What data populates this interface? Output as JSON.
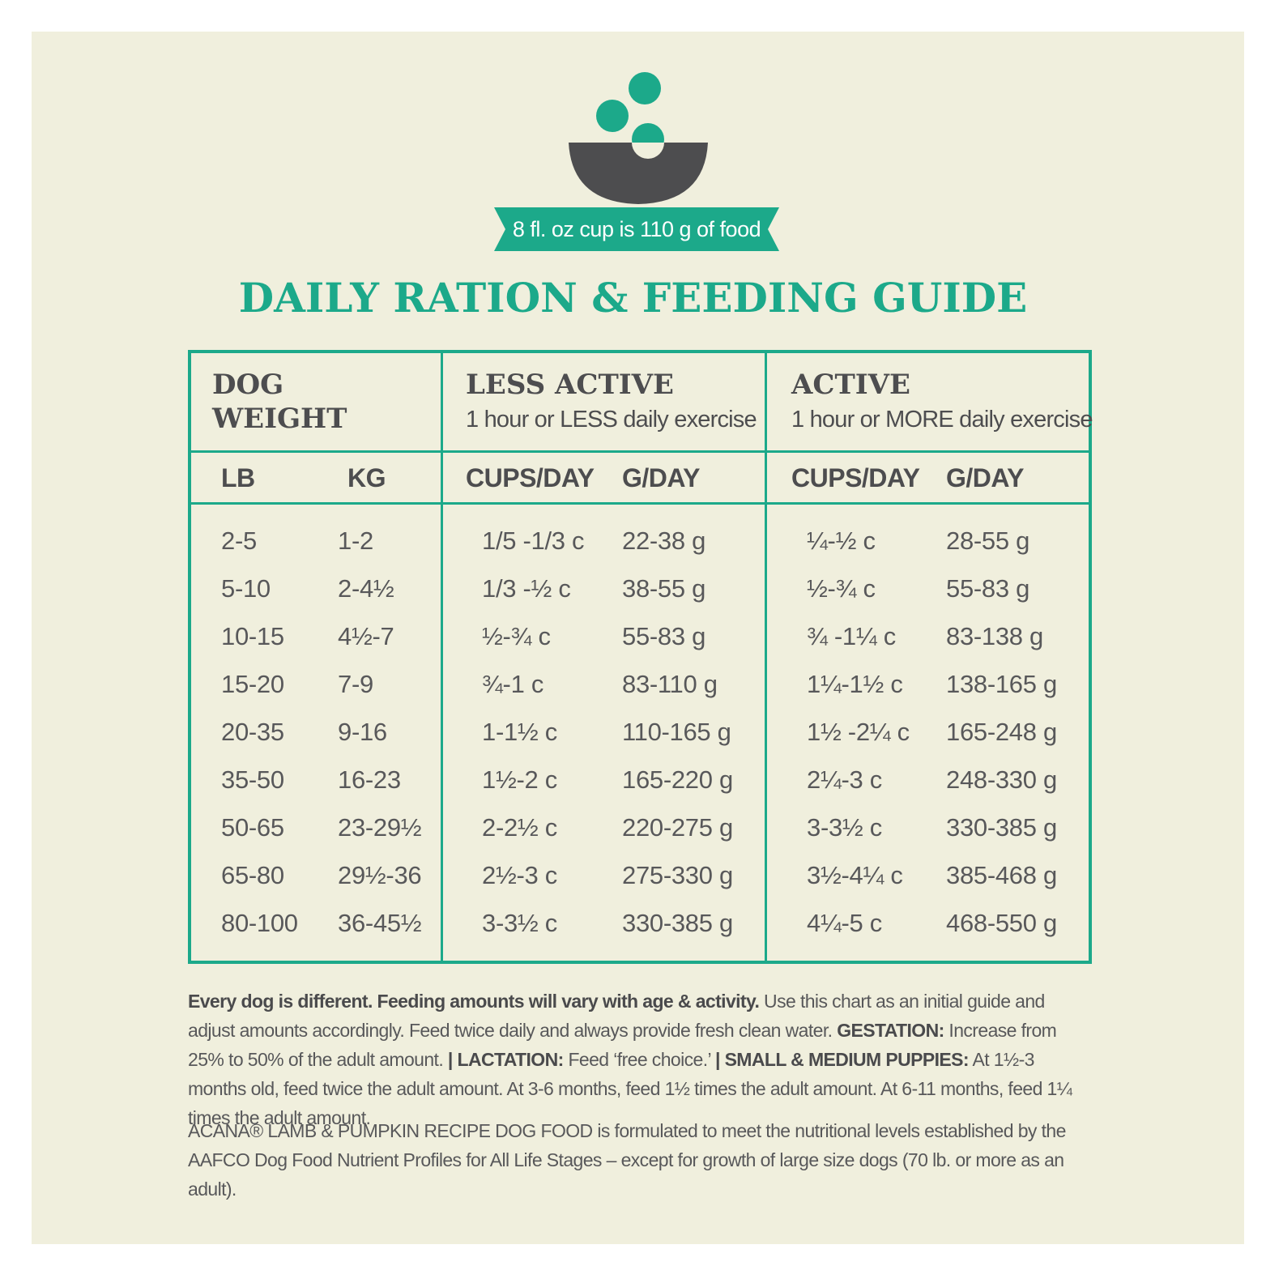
{
  "colors": {
    "teal": "#1ca98a",
    "bowl": "#4d4d4f",
    "background": "#f0efdd"
  },
  "icon": {
    "name": "food-bowl-icon"
  },
  "banner_text": "8 fl. oz cup is 110 g of food",
  "title": "DAILY RATION & FEEDING GUIDE",
  "table": {
    "groups": {
      "weight": {
        "line1": "DOG",
        "line2": "WEIGHT"
      },
      "less_active": {
        "title": "LESS ACTIVE",
        "subtitle": "1 hour or LESS daily exercise"
      },
      "active": {
        "title": "ACTIVE",
        "subtitle": "1 hour or MORE daily exercise"
      }
    },
    "columns": [
      "LB",
      "KG",
      "CUPS/DAY",
      "G/DAY",
      "CUPS/DAY",
      "G/DAY"
    ],
    "rows": [
      [
        "2-5",
        "1-2",
        "1/5 -1/3 c",
        "22-38 g",
        "¼-½ c",
        "28-55 g"
      ],
      [
        "5-10",
        "2-4½",
        "1/3 -½ c",
        "38-55 g",
        "½-¾ c",
        "55-83 g"
      ],
      [
        "10-15",
        "4½-7",
        "½-¾ c",
        "55-83 g",
        "¾ -1¼ c",
        "83-138 g"
      ],
      [
        "15-20",
        "7-9",
        "¾-1 c",
        "83-110 g",
        "1¼-1½ c",
        "138-165 g"
      ],
      [
        "20-35",
        "9-16",
        "1-1½ c",
        "110-165 g",
        "1½ -2¼ c",
        "165-248 g"
      ],
      [
        "35-50",
        "16-23",
        "1½-2 c",
        "165-220 g",
        "2¼-3 c",
        "248-330 g"
      ],
      [
        "50-65",
        "23-29½",
        "2-2½ c",
        "220-275 g",
        "3-3½ c",
        "330-385 g"
      ],
      [
        "65-80",
        "29½-36",
        "2½-3 c",
        "275-330 g",
        "3½-4¼ c",
        "385-468 g"
      ],
      [
        "80-100",
        "36-45½",
        "3-3½ c",
        "330-385 g",
        "4¼-5 c",
        "468-550 g"
      ]
    ]
  },
  "notes": {
    "bold_intro": "Every dog is different. Feeding amounts will vary with age & activity.",
    "text1": " Use this chart as an initial guide and adjust amounts accordingly. Feed twice daily and always provide fresh clean water. ",
    "gestation_label": "GESTATION:",
    "gestation_text": " Increase from 25% to 50% of the adult amount. ",
    "lactation_label": "| LACTATION:",
    "lactation_text": " Feed ‘free choice.’ ",
    "puppies_label": "| SMALL & MEDIUM PUPPIES:",
    "puppies_text": " At 1½-3 months old, feed twice the adult amount. At 3-6 months, feed 1½ times the adult amount. At 6-11 months, feed 1¼ times the adult amount."
  },
  "disclaimer": "ACANA® LAMB & PUMPKIN RECIPE DOG FOOD is formulated to meet the nutritional levels established by the AAFCO Dog Food Nutrient Profiles for All Life Stages – except for growth of large size dogs (70 lb. or more as an adult)."
}
